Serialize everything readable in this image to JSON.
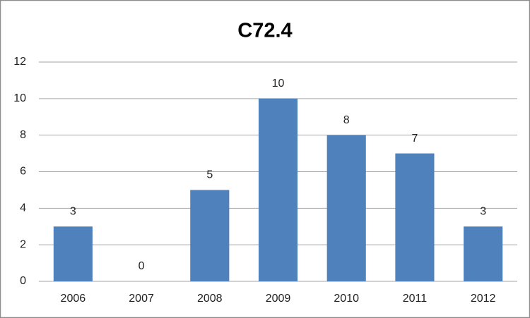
{
  "chart_data": {
    "type": "bar",
    "title": "C72.4",
    "categories": [
      "2006",
      "2007",
      "2008",
      "2009",
      "2010",
      "2011",
      "2012"
    ],
    "values": [
      3,
      0,
      5,
      10,
      8,
      7,
      3
    ],
    "color": "#4f81bd",
    "ylim": [
      0,
      12
    ],
    "yticks": [
      0,
      2,
      4,
      6,
      8,
      10,
      12
    ],
    "grid": true
  }
}
